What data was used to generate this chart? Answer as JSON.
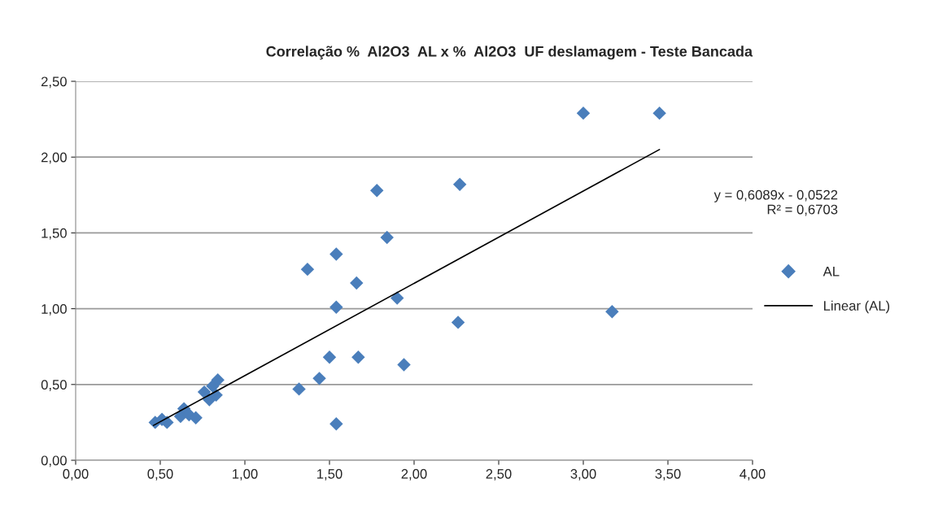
{
  "chart_data": {
    "type": "scatter",
    "title": "Correlação %  Al2O3  AL x %  Al2O3  UF deslamagem - Teste Bancada",
    "series": [
      {
        "name": "AL",
        "color": "#4a7ebb",
        "marker": "diamond",
        "x": [
          0.47,
          0.51,
          0.54,
          0.62,
          0.64,
          0.67,
          0.71,
          0.76,
          0.79,
          0.81,
          0.83,
          0.84,
          1.32,
          1.37,
          1.44,
          1.5,
          1.54,
          1.54,
          1.54,
          1.66,
          1.67,
          1.78,
          1.84,
          1.9,
          1.94,
          2.26,
          2.27,
          3.0,
          3.17,
          3.45
        ],
        "values": [
          0.25,
          0.27,
          0.25,
          0.29,
          0.34,
          0.3,
          0.28,
          0.45,
          0.4,
          0.49,
          0.43,
          0.53,
          0.47,
          1.26,
          0.54,
          0.68,
          1.36,
          1.01,
          0.24,
          1.17,
          0.68,
          1.78,
          1.47,
          1.07,
          0.63,
          0.91,
          1.82,
          2.29,
          0.98,
          2.29
        ]
      },
      {
        "name": "Linear (AL)",
        "type": "line",
        "color": "#000000",
        "marker": "none",
        "line_style": "solid",
        "x": [
          0.46,
          3.45
        ],
        "values": [
          0.23,
          2.05
        ]
      }
    ],
    "annotations": [
      "y = 0,6089x - 0,0522\nR² = 0,6703"
    ],
    "xlim": [
      0,
      4
    ],
    "xticks": [
      {
        "value": 0,
        "label": "0,00"
      },
      {
        "value": 0.5,
        "label": "0,50"
      },
      {
        "value": 1,
        "label": "1,00"
      },
      {
        "value": 1.5,
        "label": "1,50"
      },
      {
        "value": 2,
        "label": "2,00"
      },
      {
        "value": 2.5,
        "label": "2,50"
      },
      {
        "value": 3,
        "label": "3,00"
      },
      {
        "value": 3.5,
        "label": "3,50"
      },
      {
        "value": 4,
        "label": "4,00"
      }
    ],
    "ylim": [
      0,
      2.5
    ],
    "yticks": [
      {
        "value": 0,
        "label": "0,00"
      },
      {
        "value": 0.5,
        "label": "0,50"
      },
      {
        "value": 1,
        "label": "1,00"
      },
      {
        "value": 1.5,
        "label": "1,50"
      },
      {
        "value": 2,
        "label": "2,00"
      },
      {
        "value": 2.5,
        "label": "2,50"
      }
    ],
    "grid": "y",
    "legend": "right"
  }
}
